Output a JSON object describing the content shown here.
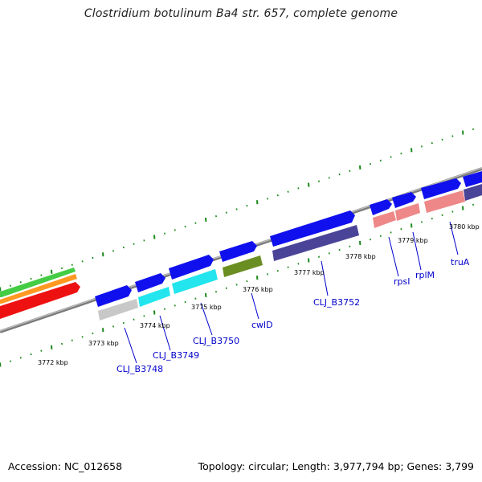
{
  "title": "Clostridium botulinum Ba4 str. 657, complete genome",
  "footer": {
    "accession": "Accession: NC_012658",
    "summary": "Topology: circular; Length: 3,977,794 bp; Genes: 3,799"
  },
  "scale_labels": [
    "3772 kbp",
    "3773 kbp",
    "3774 kbp",
    "3775 kbp",
    "3776 kbp",
    "3777 kbp",
    "3778 kbp",
    "3779 kbp",
    "3780 kbp"
  ],
  "gene_labels": [
    "CLJ_B3748",
    "CLJ_B3749",
    "CLJ_B3750",
    "cwlD",
    "CLJ_B3752",
    "rpsI",
    "rplM",
    "truA"
  ],
  "colors": {
    "backbone": "#888888",
    "tick": "#1a8a1a",
    "gene_blue": "#1010ee",
    "label_blue": "#0000cc",
    "silver": "#c8c8c8",
    "cyan": "#22e5ee",
    "olive": "#6b8e23",
    "slate": "#4a4498",
    "salmon": "#ee8888",
    "green": "#44cc44",
    "orange": "#ff9922",
    "red": "#ee1111"
  }
}
